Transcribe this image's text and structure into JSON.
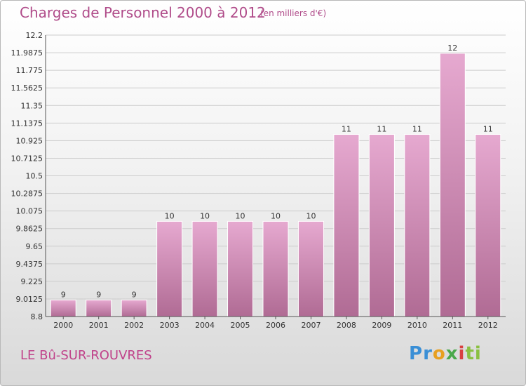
{
  "header": {
    "title": "Charges de Personnel 2000 à 2012",
    "subtitle": "(en milliers d'€)"
  },
  "footer": {
    "location": "LE Bû-SUR-ROUVRES",
    "logo": "Proxiti"
  },
  "colors": {
    "bar_top": "#e6a9d0",
    "bar_bottom": "#b06b94",
    "title": "#b04c8a",
    "gridline": "#cccccc"
  },
  "chart_data": {
    "type": "bar",
    "title": "Charges de Personnel 2000 à 2012",
    "subtitle": "(en milliers d'€)",
    "categories": [
      "2000",
      "2001",
      "2002",
      "2003",
      "2004",
      "2005",
      "2006",
      "2007",
      "2008",
      "2009",
      "2010",
      "2011",
      "2012"
    ],
    "values": [
      9,
      9,
      9,
      10,
      10,
      10,
      10,
      10,
      11,
      11,
      11,
      12,
      11
    ],
    "bar_heights": [
      9.0,
      9.0,
      9.0,
      9.95,
      9.95,
      9.95,
      9.95,
      9.95,
      11.0,
      11.0,
      11.0,
      11.98,
      11.0
    ],
    "data_labels": [
      "9",
      "9",
      "9",
      "10",
      "10",
      "10",
      "10",
      "10",
      "11",
      "11",
      "11",
      "12",
      "11"
    ],
    "y_ticks": [
      "12.2",
      "11.9875",
      "11.775",
      "11.5625",
      "11.35",
      "11.1375",
      "10.925",
      "10.7125",
      "10.5",
      "10.2875",
      "10.075",
      "9.8625",
      "9.65",
      "9.4375",
      "9.225",
      "9.0125",
      "8.8"
    ],
    "ylim": [
      8.8,
      12.2
    ],
    "xlabel": "",
    "ylabel": "",
    "grid": true,
    "legend": "none"
  }
}
